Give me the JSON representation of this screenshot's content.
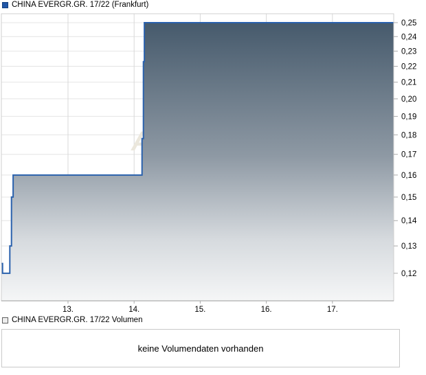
{
  "price_panel": {
    "legend": {
      "label": "CHINA EVERGR.GR. 17/22 (Frankfurt)",
      "swatch_color": "#2157a7",
      "swatch_border": "#14417e"
    },
    "watermark": "A"
  },
  "volume_panel": {
    "legend": {
      "label": "CHINA EVERGR.GR. 17/22 Volumen",
      "swatch_color": "#ededed",
      "swatch_border": "#5f5f5f"
    },
    "message": "keine Volumendaten vorhanden"
  },
  "chart_data": {
    "type": "area",
    "title": "CHINA EVERGR.GR. 17/22 (Frankfurt)",
    "subtitle": "",
    "xlabel": "",
    "ylabel": "",
    "x_unit": "day of month",
    "y_scale": "log",
    "grid": true,
    "legend_position": "top-left-above-plot",
    "xlim": [
      11.992,
      17.927
    ],
    "ylim": [
      0.1107,
      0.2566
    ],
    "x_ticks": [
      {
        "v": 13,
        "label": "13."
      },
      {
        "v": 14,
        "label": "14."
      },
      {
        "v": 15,
        "label": "15."
      },
      {
        "v": 16,
        "label": "16."
      },
      {
        "v": 17,
        "label": "17."
      }
    ],
    "y_ticks": [
      {
        "v": 0.12,
        "label": "0,12"
      },
      {
        "v": 0.13,
        "label": "0,13"
      },
      {
        "v": 0.14,
        "label": "0,14"
      },
      {
        "v": 0.15,
        "label": "0,15"
      },
      {
        "v": 0.16,
        "label": "0,16"
      },
      {
        "v": 0.17,
        "label": "0,17"
      },
      {
        "v": 0.18,
        "label": "0,18"
      },
      {
        "v": 0.19,
        "label": "0,19"
      },
      {
        "v": 0.2,
        "label": "0,20"
      },
      {
        "v": 0.21,
        "label": "0,21"
      },
      {
        "v": 0.22,
        "label": "0,22"
      },
      {
        "v": 0.23,
        "label": "0,23"
      },
      {
        "v": 0.24,
        "label": "0,24"
      },
      {
        "v": 0.25,
        "label": "0,25"
      }
    ],
    "series": [
      {
        "name": "CHINA EVERGR.GR. 17/22",
        "mode": "step-after",
        "color": "#2a61ad",
        "points": [
          [
            11.995,
            0.1235
          ],
          [
            12.01,
            0.12
          ],
          [
            12.12,
            0.13
          ],
          [
            12.145,
            0.15
          ],
          [
            12.17,
            0.16
          ],
          [
            14.12,
            0.178
          ],
          [
            14.14,
            0.223
          ],
          [
            14.155,
            0.25
          ],
          [
            17.927,
            0.25
          ]
        ]
      }
    ],
    "fill_gradient": [
      "#465a6c",
      "#8e99a4",
      "#d6dade",
      "#f5f6f7"
    ],
    "watermark_text": "A"
  }
}
